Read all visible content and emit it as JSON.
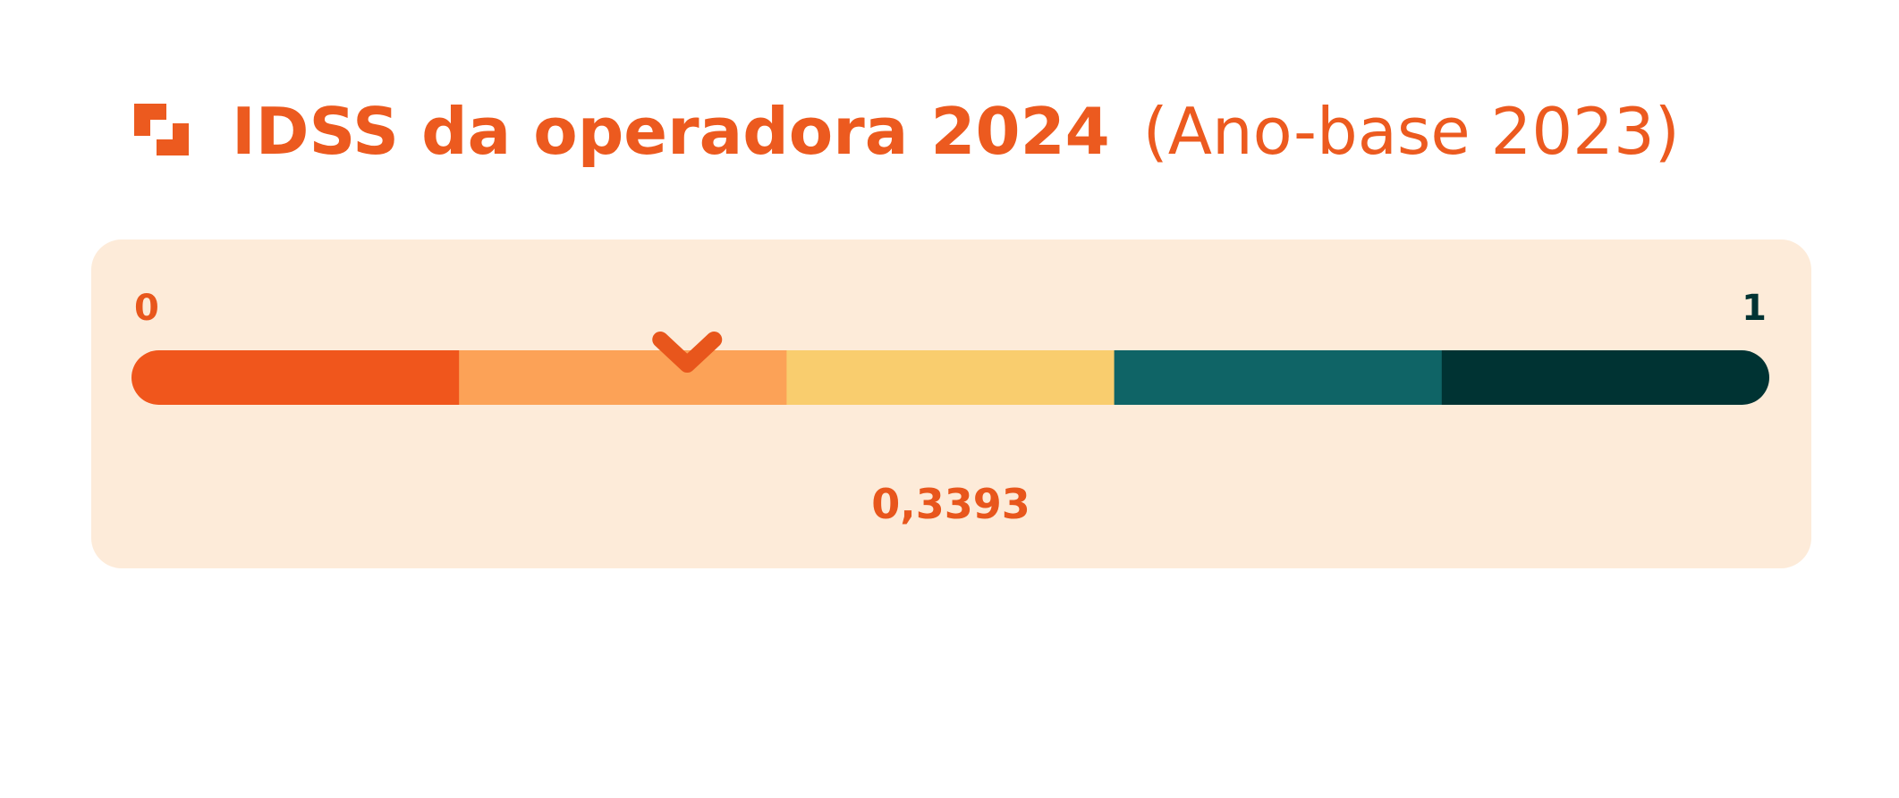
{
  "header": {
    "title": "IDSS da operadora 2024",
    "subtitle": "(Ano-base 2023)",
    "color": "#ec5a1f"
  },
  "gauge": {
    "min": 0,
    "max": 1,
    "value": {
      "value": 0.3393,
      "label": "0,3393"
    },
    "segments": [
      {
        "color": "#f0561c"
      },
      {
        "color": "#fca257"
      },
      {
        "color": "#f9cd6e"
      },
      {
        "color": "#0f6466"
      },
      {
        "color": "#003333"
      }
    ],
    "marker_color": "#e8561c",
    "background": "#fdebd9"
  }
}
